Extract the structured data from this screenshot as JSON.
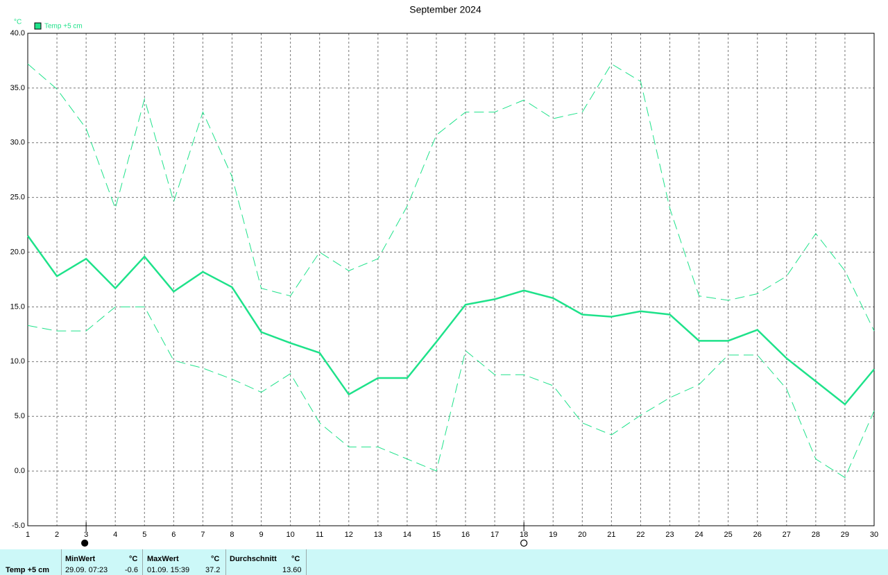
{
  "chart_data": {
    "type": "line",
    "title": "September 2024",
    "y_label": "°C",
    "x": [
      1,
      2,
      3,
      4,
      5,
      6,
      7,
      8,
      9,
      10,
      11,
      12,
      13,
      14,
      15,
      16,
      17,
      18,
      19,
      20,
      21,
      22,
      23,
      24,
      25,
      26,
      27,
      28,
      29,
      30
    ],
    "xlim": [
      1,
      30
    ],
    "xticks": [
      1,
      2,
      3,
      4,
      5,
      6,
      7,
      8,
      9,
      10,
      11,
      12,
      13,
      14,
      15,
      16,
      17,
      18,
      19,
      20,
      21,
      22,
      23,
      24,
      25,
      26,
      27,
      28,
      29,
      30
    ],
    "ylim": [
      -5,
      40
    ],
    "yticks": [
      {
        "value": -5,
        "label": "-5.0"
      },
      {
        "value": 0,
        "label": "0.0"
      },
      {
        "value": 5,
        "label": "5.0"
      },
      {
        "value": 10,
        "label": "10.0"
      },
      {
        "value": 15,
        "label": "15.0"
      },
      {
        "value": 20,
        "label": "20.0"
      },
      {
        "value": 25,
        "label": "25.0"
      },
      {
        "value": 30,
        "label": "30.0"
      },
      {
        "value": 35,
        "label": "35.0"
      },
      {
        "value": 40,
        "label": "40.0"
      }
    ],
    "grid": true,
    "series": [
      {
        "name": "Temp +5 cm",
        "color": "#1ee28a",
        "style": "solid",
        "values": [
          21.5,
          17.8,
          19.4,
          16.7,
          19.6,
          16.4,
          18.2,
          16.8,
          12.7,
          11.7,
          10.8,
          7.0,
          8.5,
          8.5,
          11.8,
          15.2,
          15.7,
          16.5,
          15.8,
          14.3,
          14.1,
          14.6,
          14.3,
          11.9,
          11.9,
          12.9,
          10.3,
          8.2,
          6.1,
          9.3
        ]
      },
      {
        "color": "#1ee28a",
        "style": "dashed",
        "values": [
          37.2,
          34.9,
          31.3,
          24.0,
          34.0,
          24.6,
          32.8,
          26.9,
          16.7,
          16.0,
          20.0,
          18.3,
          19.4,
          24.2,
          30.7,
          32.8,
          32.8,
          33.9,
          32.2,
          32.8,
          37.2,
          35.6,
          24.0,
          16.0,
          15.6,
          16.2,
          17.8,
          21.7,
          18.3,
          12.8
        ]
      },
      {
        "color": "#1ee28a",
        "style": "dashed",
        "values": [
          13.3,
          12.8,
          12.8,
          15.0,
          15.0,
          10.1,
          9.4,
          8.4,
          7.2,
          8.9,
          4.4,
          2.2,
          2.2,
          1.1,
          0.0,
          11.0,
          8.8,
          8.8,
          7.8,
          4.4,
          3.3,
          5.1,
          6.7,
          7.9,
          10.6,
          10.6,
          7.5,
          1.1,
          -0.6,
          5.5
        ]
      }
    ],
    "moon_phases": [
      {
        "day": 3,
        "phase": "new"
      },
      {
        "day": 18,
        "phase": "full"
      }
    ]
  },
  "summary": {
    "sensor": "Temp +5 cm",
    "min": {
      "label": "MinWert",
      "unit": "°C",
      "time": "29.09.  07:23",
      "value": "-0.6"
    },
    "max": {
      "label": "MaxWert",
      "unit": "°C",
      "time": "01.09.  15:39",
      "value": "37.2"
    },
    "avg": {
      "label": "Durchschnitt",
      "unit": "°C",
      "value": "13.60"
    }
  }
}
